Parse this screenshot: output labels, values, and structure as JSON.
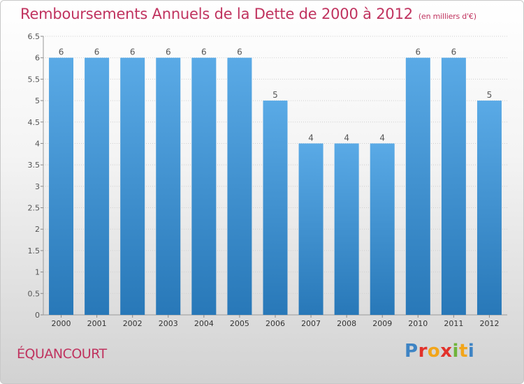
{
  "header": {
    "title": "Remboursements Annuels de la Dette de 2000 à 2012",
    "unit": "(en milliers d'€)"
  },
  "footer": {
    "commune": "ÉQUANCOURT",
    "brand_parts": [
      "P",
      "r",
      "o",
      "x",
      "i",
      "t",
      "i"
    ]
  },
  "colors": {
    "bar_top": "#5aaae6",
    "bar_bottom": "#2878b8",
    "title": "#c0335f",
    "grid": "#cfcfcf"
  },
  "chart_data": {
    "type": "bar",
    "title": "Remboursements Annuels de la Dette de 2000 à 2012",
    "unit_label": "(en milliers d'€)",
    "categories": [
      "2000",
      "2001",
      "2002",
      "2003",
      "2004",
      "2005",
      "2006",
      "2007",
      "2008",
      "2009",
      "2010",
      "2011",
      "2012"
    ],
    "values": [
      6,
      6,
      6,
      6,
      6,
      6,
      5,
      4,
      4,
      4,
      6,
      6,
      5
    ],
    "data_labels": [
      "6",
      "6",
      "6",
      "6",
      "6",
      "6",
      "5",
      "4",
      "4",
      "4",
      "6",
      "6",
      "5"
    ],
    "ylim": [
      0,
      6.5
    ],
    "yticks": [
      0,
      0.5,
      1,
      1.5,
      2,
      2.5,
      3,
      3.5,
      4,
      4.5,
      5,
      5.5,
      6,
      6.5
    ],
    "ytick_labels": [
      "0",
      "0.5",
      "1",
      "1.5",
      "2",
      "2.5",
      "3",
      "3.5",
      "4",
      "4.5",
      "5",
      "5.5",
      "6",
      "6.5"
    ],
    "grid": true,
    "xlabel": "",
    "ylabel": ""
  }
}
